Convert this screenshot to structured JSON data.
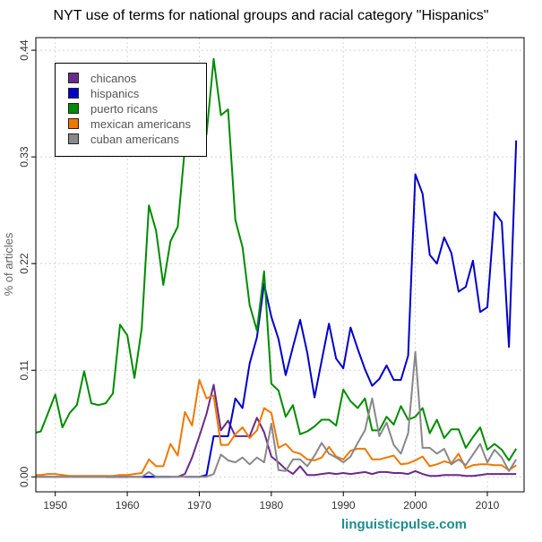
{
  "chart_data": {
    "type": "line",
    "title": "NYT use of terms for national groups and racial  category \"Hispanics\"",
    "xlabel": "",
    "ylabel": "% of articles",
    "xlim": [
      1947.3,
      2015.1
    ],
    "ylim": [
      -0.0154,
      0.453
    ],
    "x_ticks": [
      1950,
      1960,
      1970,
      1980,
      1990,
      2000,
      2010
    ],
    "y_ticks": [
      "0.00",
      "0.11",
      "0.22",
      "0.33",
      "0.44"
    ],
    "grid": true,
    "legend_position": "top-left",
    "watermark": "linguisticpulse.com",
    "x": [
      1947,
      1948,
      1949,
      1950,
      1951,
      1952,
      1953,
      1954,
      1955,
      1956,
      1957,
      1958,
      1959,
      1960,
      1961,
      1962,
      1963,
      1964,
      1965,
      1966,
      1967,
      1968,
      1969,
      1970,
      1971,
      1972,
      1973,
      1974,
      1975,
      1976,
      1977,
      1978,
      1979,
      1980,
      1981,
      1982,
      1983,
      1984,
      1985,
      1986,
      1987,
      1988,
      1989,
      1990,
      1991,
      1992,
      1993,
      1994,
      1995,
      1996,
      1997,
      1998,
      1999,
      2000,
      2001,
      2002,
      2003,
      2004,
      2005,
      2006,
      2007,
      2008,
      2009,
      2010,
      2011,
      2012,
      2013,
      2014
    ],
    "series": [
      {
        "name": "chicanos",
        "color": "#6a2a8c",
        "values": [
          0,
          0,
          0,
          0,
          0,
          0,
          0,
          0,
          0,
          0,
          0,
          0,
          0,
          0,
          0,
          0,
          0,
          0,
          0,
          0,
          0,
          0.003,
          0.02,
          0.042,
          0.065,
          0.095,
          0.048,
          0.058,
          0.042,
          0.042,
          0.042,
          0.061,
          0.046,
          0.021,
          0.015,
          0.008,
          0.003,
          0.011,
          0.002,
          0.002,
          0.003,
          0.004,
          0.003,
          0.004,
          0.003,
          0.004,
          0.005,
          0.003,
          0.005,
          0.005,
          0.004,
          0.004,
          0.003,
          0.006,
          0.003,
          0.001,
          0.001,
          0.002,
          0.002,
          0.002,
          0.001,
          0.001,
          0.002,
          0.003,
          0.003,
          0.003,
          0.003,
          0.003
        ]
      },
      {
        "name": "hispanics",
        "color": "#0000cc",
        "values": [
          null,
          null,
          null,
          null,
          null,
          null,
          null,
          null,
          null,
          null,
          0,
          0,
          0,
          0,
          null,
          0,
          0,
          0,
          0,
          0,
          null,
          0,
          0,
          0,
          0.002,
          0.042,
          0.042,
          0.042,
          0.081,
          0.071,
          0.117,
          0.144,
          0.199,
          0.165,
          0.142,
          0.105,
          0.134,
          0.162,
          0.128,
          0.082,
          0.12,
          0.158,
          0.122,
          0.112,
          0.154,
          0.132,
          0.111,
          0.094,
          0.101,
          0.115,
          0.1,
          0.1,
          0.125,
          0.312,
          0.292,
          0.229,
          0.22,
          0.247,
          0.231,
          0.191,
          0.196,
          0.223,
          0.17,
          0.175,
          0.273,
          0.263,
          0.134,
          0.347
        ]
      },
      {
        "name": "puerto ricans",
        "color": "#008c00",
        "values": [
          0.045,
          0.047,
          0.066,
          0.085,
          0.051,
          0.066,
          0.074,
          0.109,
          0.076,
          0.074,
          0.076,
          0.086,
          0.157,
          0.146,
          0.102,
          0.153,
          0.28,
          0.254,
          0.198,
          0.243,
          0.258,
          0.34,
          0.345,
          0.35,
          0.353,
          0.431,
          0.373,
          0.379,
          0.265,
          0.237,
          0.177,
          0.151,
          0.212,
          0.096,
          0.089,
          0.062,
          0.074,
          0.044,
          0.047,
          0.052,
          0.059,
          0.059,
          0.053,
          0.09,
          0.078,
          0.071,
          0.081,
          0.048,
          0.048,
          0.062,
          0.054,
          0.073,
          0.059,
          0.062,
          0.071,
          0.045,
          0.059,
          0.04,
          0.049,
          0.049,
          0.03,
          0.041,
          0.051,
          0.028,
          0.034,
          0.028,
          0.017,
          0.029
        ]
      },
      {
        "name": "mexican americans",
        "color": "#f07800",
        "values": [
          0.002,
          0.002,
          0.003,
          0.003,
          0.002,
          0.001,
          0.001,
          0.001,
          0.001,
          0.001,
          0.001,
          0.001,
          0.002,
          0.002,
          0.003,
          0.004,
          0.018,
          0.011,
          0.011,
          0.034,
          0.022,
          0.067,
          0.053,
          0.1,
          0.081,
          0.084,
          0.033,
          0.033,
          0.044,
          0.051,
          0.04,
          0.048,
          0.071,
          0.066,
          0.03,
          0.034,
          0.026,
          0.024,
          0.018,
          0.017,
          0.02,
          0.031,
          0.021,
          0.018,
          0.027,
          0.029,
          0.029,
          0.018,
          0.018,
          0.02,
          0.022,
          0.013,
          0.014,
          0.017,
          0.021,
          0.011,
          0.013,
          0.016,
          0.014,
          0.024,
          0.009,
          0.012,
          0.013,
          0.013,
          0.012,
          0.012,
          0.007,
          0.012
        ]
      },
      {
        "name": "cuban americans",
        "color": "#888888",
        "values": [
          0,
          0,
          0,
          0,
          0,
          0,
          0,
          0,
          0,
          0,
          0,
          0,
          0,
          0,
          0,
          0,
          0.005,
          0,
          0,
          0,
          0,
          0,
          0,
          0,
          0,
          0.003,
          0.023,
          0.017,
          0.015,
          0.02,
          0.013,
          0.02,
          0.015,
          0.055,
          0.007,
          0.006,
          0.018,
          0.018,
          0.011,
          0.022,
          0.035,
          0.024,
          0.02,
          0.015,
          0.021,
          0.035,
          0.048,
          0.081,
          0.042,
          0.056,
          0.033,
          0.024,
          0.045,
          0.129,
          0.03,
          0.03,
          0.024,
          0.029,
          0.013,
          0.018,
          0.012,
          0.023,
          0.034,
          0.015,
          0.028,
          0.02,
          0.006,
          0.018
        ]
      }
    ]
  }
}
